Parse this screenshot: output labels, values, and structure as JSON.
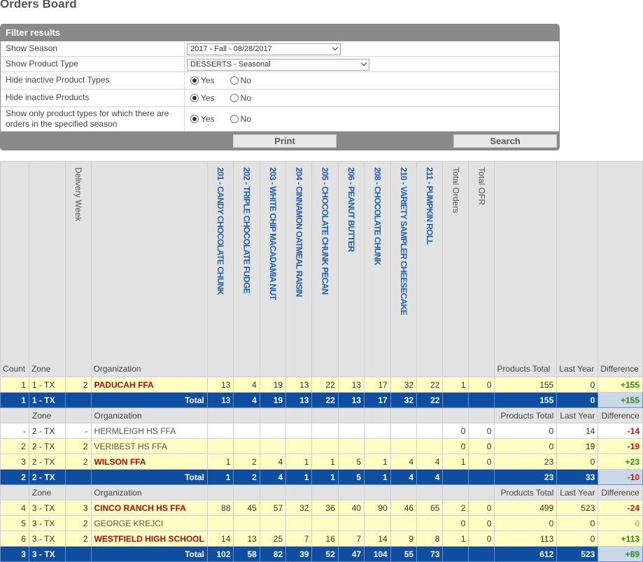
{
  "page_title": "Orders Board",
  "filter": {
    "title": "Filter results",
    "rows": [
      {
        "label": "Show Season",
        "type": "select",
        "value": "2017 - Fall - 08/28/2017"
      },
      {
        "label": "Show Product Type",
        "type": "select",
        "value": "DESSERTS - Seasonal"
      },
      {
        "label": "Hide inactive Product Types",
        "type": "radio",
        "yes": "Yes",
        "no": "No",
        "selected": "yes"
      },
      {
        "label": "Hide inactive Products",
        "type": "radio",
        "yes": "Yes",
        "no": "No",
        "selected": "yes"
      },
      {
        "label": "Show only product types for which there are orders in the specified season",
        "type": "radio",
        "yes": "Yes",
        "no": "No",
        "selected": "yes"
      }
    ],
    "print_label": "Print",
    "search_label": "Search"
  },
  "grid": {
    "headers": {
      "count": "Count",
      "zone": "Zone",
      "delivery_week": "Delivery Week",
      "organization": "Organization",
      "products": [
        "201 - CANDY CHOCOLATE CHUNK",
        "202 - TRIPLE CHOCOLATE FUDGE",
        "203 - WHITE CHIP MACADAMIA NUT",
        "204 - CINNAMON OATMEAL RAISIN",
        "205 - CHOCOLATE CHUNK PECAN",
        "206 - PEANUT BUTTER",
        "208 - CHOCOLATE CHUNK",
        "210 - VARIETY SAMPLER CHEESECAKE",
        "211 - PUMPKIN ROLL"
      ],
      "total_orders": "Total Orders",
      "total_ofr": "Total OFR",
      "products_total": "Products Total",
      "last_year": "Last Year",
      "difference": "Difference"
    },
    "zones": [
      {
        "rows": [
          {
            "count": "1",
            "zone": "1 - TX",
            "week": "2",
            "org": "PADUCAH FFA",
            "org_style": "red",
            "bg": "yel",
            "products": [
              "13",
              "4",
              "19",
              "13",
              "22",
              "13",
              "17",
              "32",
              "22"
            ],
            "orders": "1",
            "ofr": "0",
            "products_total": "155",
            "last_year": "0",
            "difference": "+155",
            "diff_style": "pos"
          }
        ],
        "total": {
          "count": "1",
          "zone": "1 - TX",
          "label": "Total",
          "products": [
            "13",
            "4",
            "19",
            "13",
            "22",
            "13",
            "17",
            "32",
            "22"
          ],
          "products_total": "155",
          "last_year": "0",
          "difference": "+155",
          "diff_style": "pos"
        }
      },
      {
        "rows": [
          {
            "count": "-",
            "zone": "2 - TX",
            "week": "-",
            "org": "HERMLEIGH HS FFA",
            "org_style": "gray",
            "bg": "wht",
            "products": [
              "",
              "",
              "",
              "",
              "",
              "",
              "",
              "",
              ""
            ],
            "orders": "0",
            "ofr": "0",
            "products_total": "0",
            "last_year": "14",
            "difference": "-14",
            "diff_style": "neg"
          },
          {
            "count": "2",
            "zone": "2 - TX",
            "week": "2",
            "org": "VERIBEST HS FFA",
            "org_style": "gray",
            "bg": "yel",
            "products": [
              "",
              "",
              "",
              "",
              "",
              "",
              "",
              "",
              ""
            ],
            "orders": "0",
            "ofr": "0",
            "products_total": "0",
            "last_year": "19",
            "difference": "-19",
            "diff_style": "neg"
          },
          {
            "count": "3",
            "zone": "2 - TX",
            "week": "2",
            "org": "WILSON FFA",
            "org_style": "red",
            "bg": "yel",
            "products": [
              "1",
              "2",
              "4",
              "1",
              "1",
              "5",
              "1",
              "4",
              "4"
            ],
            "orders": "1",
            "ofr": "0",
            "products_total": "23",
            "last_year": "0",
            "difference": "+23",
            "diff_style": "pos"
          }
        ],
        "total": {
          "count": "2",
          "zone": "2 - TX",
          "label": "Total",
          "products": [
            "1",
            "2",
            "4",
            "1",
            "1",
            "5",
            "1",
            "4",
            "4"
          ],
          "products_total": "23",
          "last_year": "33",
          "difference": "-10",
          "diff_style": "neg"
        }
      },
      {
        "rows": [
          {
            "count": "4",
            "zone": "3 - TX",
            "week": "3",
            "org": "CINCO RANCH HS FFA",
            "org_style": "red",
            "bg": "yel",
            "products": [
              "88",
              "45",
              "57",
              "32",
              "36",
              "40",
              "90",
              "46",
              "65"
            ],
            "orders": "2",
            "ofr": "0",
            "products_total": "499",
            "last_year": "523",
            "difference": "-24",
            "diff_style": "neg"
          },
          {
            "count": "5",
            "zone": "3 - TX",
            "week": "2",
            "org": "GEORGE KREJCI",
            "org_style": "gray",
            "bg": "yel",
            "products": [
              "",
              "",
              "",
              "",
              "",
              "",
              "",
              "",
              ""
            ],
            "orders": "0",
            "ofr": "0",
            "products_total": "0",
            "last_year": "0",
            "difference": "0",
            "diff_style": "zero"
          },
          {
            "count": "6",
            "zone": "3 - TX",
            "week": "2",
            "org": "WESTFIELD HIGH SCHOOL",
            "org_style": "red",
            "bg": "yel",
            "products": [
              "14",
              "13",
              "25",
              "7",
              "16",
              "7",
              "14",
              "9",
              "8"
            ],
            "orders": "1",
            "ofr": "0",
            "products_total": "113",
            "last_year": "0",
            "difference": "+113",
            "diff_style": "pos"
          }
        ],
        "total": {
          "count": "3",
          "zone": "3 - TX",
          "label": "Total",
          "products": [
            "102",
            "58",
            "82",
            "39",
            "52",
            "47",
            "104",
            "55",
            "73"
          ],
          "products_total": "612",
          "last_year": "523",
          "difference": "+89",
          "diff_style": "pos"
        }
      }
    ]
  }
}
